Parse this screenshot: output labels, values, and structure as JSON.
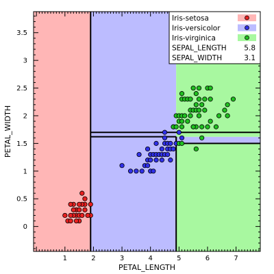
{
  "chart_data": {
    "type": "scatter",
    "xlabel": "PETAL_LENGTH",
    "ylabel": "PETAL_WIDTH",
    "xlim": [
      -0.1,
      7.85
    ],
    "ylim": [
      -0.45,
      3.88
    ],
    "xticks": [
      1,
      2,
      3,
      4,
      5,
      6,
      7
    ],
    "yticks": [
      0,
      0.5,
      1,
      1.5,
      2,
      2.5,
      3,
      3.5
    ],
    "grid": false,
    "legend_placement": "top-right",
    "regions": [
      {
        "class": "Iris-setosa",
        "x": [
          -0.1,
          1.9
        ],
        "y": [
          -0.45,
          3.88
        ]
      },
      {
        "class": "Iris-versicolor",
        "x": [
          1.9,
          4.9
        ],
        "y": [
          -0.45,
          1.7
        ]
      },
      {
        "class": "Iris-virginica",
        "x": [
          1.9,
          4.9
        ],
        "y": [
          1.7,
          1.62
        ]
      },
      {
        "class": "Iris-versicolor",
        "x": [
          1.9,
          4.9
        ],
        "y": [
          1.62,
          3.88
        ]
      },
      {
        "class": "Iris-virginica",
        "x": [
          4.9,
          7.85
        ],
        "y": [
          -0.45,
          1.5
        ]
      },
      {
        "class": "Iris-versicolor",
        "x": [
          4.9,
          7.85
        ],
        "y": [
          1.5,
          1.62
        ]
      },
      {
        "class": "Iris-virginica",
        "x": [
          4.9,
          7.85
        ],
        "y": [
          1.62,
          1.7
        ]
      },
      {
        "class": "Iris-virginica",
        "x": [
          4.9,
          7.85
        ],
        "y": [
          1.7,
          3.88
        ]
      }
    ],
    "series": [
      {
        "name": "Iris-setosa",
        "color": "#e82020",
        "region_color": "#ffb6b6",
        "points": [
          [
            1.4,
            0.2
          ],
          [
            1.3,
            0.2
          ],
          [
            1.5,
            0.2
          ],
          [
            1.7,
            0.4
          ],
          [
            1.4,
            0.3
          ],
          [
            1.5,
            0.1
          ],
          [
            1.6,
            0.2
          ],
          [
            1.1,
            0.1
          ],
          [
            1.2,
            0.2
          ],
          [
            1.0,
            0.2
          ],
          [
            1.9,
            0.2
          ],
          [
            1.6,
            0.4
          ],
          [
            1.5,
            0.4
          ],
          [
            1.7,
            0.3
          ],
          [
            1.3,
            0.3
          ],
          [
            1.2,
            0.1
          ],
          [
            1.4,
            0.1
          ],
          [
            1.7,
            0.5
          ],
          [
            1.9,
            0.4
          ],
          [
            1.6,
            0.6
          ],
          [
            1.3,
            0.4
          ],
          [
            1.5,
            0.3
          ],
          [
            1.8,
            0.2
          ],
          [
            1.2,
            0.4
          ]
        ]
      },
      {
        "name": "Iris-versicolor",
        "color": "#3030e8",
        "region_color": "#bcbcff",
        "points": [
          [
            3.0,
            1.1
          ],
          [
            3.3,
            1.0
          ],
          [
            3.5,
            1.0
          ],
          [
            3.6,
            1.3
          ],
          [
            3.7,
            1.0
          ],
          [
            3.8,
            1.1
          ],
          [
            3.9,
            1.1
          ],
          [
            3.9,
            1.2
          ],
          [
            3.9,
            1.4
          ],
          [
            4.0,
            1.0
          ],
          [
            4.0,
            1.2
          ],
          [
            4.0,
            1.3
          ],
          [
            4.1,
            1.0
          ],
          [
            4.1,
            1.3
          ],
          [
            4.2,
            1.2
          ],
          [
            4.2,
            1.3
          ],
          [
            4.2,
            1.5
          ],
          [
            4.3,
            1.3
          ],
          [
            4.4,
            1.2
          ],
          [
            4.4,
            1.3
          ],
          [
            4.4,
            1.4
          ],
          [
            4.5,
            1.3
          ],
          [
            4.5,
            1.5
          ],
          [
            4.5,
            1.6
          ],
          [
            4.6,
            1.3
          ],
          [
            4.6,
            1.4
          ],
          [
            4.6,
            1.5
          ],
          [
            4.7,
            1.2
          ],
          [
            4.7,
            1.4
          ],
          [
            4.8,
            1.4
          ],
          [
            4.8,
            1.8
          ],
          [
            4.9,
            1.5
          ],
          [
            5.0,
            1.7
          ],
          [
            5.1,
            1.6
          ],
          [
            4.7,
            1.5
          ],
          [
            4.5,
            1.7
          ]
        ]
      },
      {
        "name": "Iris-virginica",
        "color": "#20c020",
        "region_color": "#a8f8a0",
        "points": [
          [
            4.8,
            1.8
          ],
          [
            4.9,
            1.8
          ],
          [
            4.9,
            2.0
          ],
          [
            5.0,
            1.5
          ],
          [
            5.0,
            1.9
          ],
          [
            5.0,
            2.0
          ],
          [
            5.1,
            1.5
          ],
          [
            5.1,
            1.8
          ],
          [
            5.1,
            1.9
          ],
          [
            5.1,
            2.0
          ],
          [
            5.1,
            2.3
          ],
          [
            5.1,
            2.4
          ],
          [
            5.2,
            2.0
          ],
          [
            5.2,
            2.3
          ],
          [
            5.3,
            1.9
          ],
          [
            5.3,
            2.3
          ],
          [
            5.4,
            2.1
          ],
          [
            5.4,
            2.3
          ],
          [
            5.5,
            1.8
          ],
          [
            5.5,
            2.1
          ],
          [
            5.5,
            2.5
          ],
          [
            5.6,
            1.4
          ],
          [
            5.6,
            1.8
          ],
          [
            5.6,
            2.1
          ],
          [
            5.6,
            2.2
          ],
          [
            5.6,
            2.4
          ],
          [
            5.7,
            2.1
          ],
          [
            5.7,
            2.3
          ],
          [
            5.7,
            2.5
          ],
          [
            5.8,
            1.6
          ],
          [
            5.8,
            1.8
          ],
          [
            5.8,
            2.2
          ],
          [
            5.9,
            2.1
          ],
          [
            5.9,
            2.3
          ],
          [
            6.0,
            1.8
          ],
          [
            6.0,
            2.5
          ],
          [
            6.1,
            1.9
          ],
          [
            6.1,
            2.3
          ],
          [
            6.1,
            2.5
          ],
          [
            6.3,
            1.8
          ],
          [
            6.4,
            2.0
          ],
          [
            6.6,
            2.1
          ],
          [
            6.7,
            2.0
          ],
          [
            6.7,
            2.2
          ],
          [
            6.9,
            2.3
          ],
          [
            5.7,
            2.0
          ],
          [
            5.5,
            1.8
          ],
          [
            5.4,
            2.0
          ]
        ]
      }
    ],
    "legend_extra": [
      {
        "label": "SEPAL_LENGTH",
        "value": "5.8"
      },
      {
        "label": "SEPAL_WIDTH",
        "value": "3.1"
      }
    ]
  }
}
